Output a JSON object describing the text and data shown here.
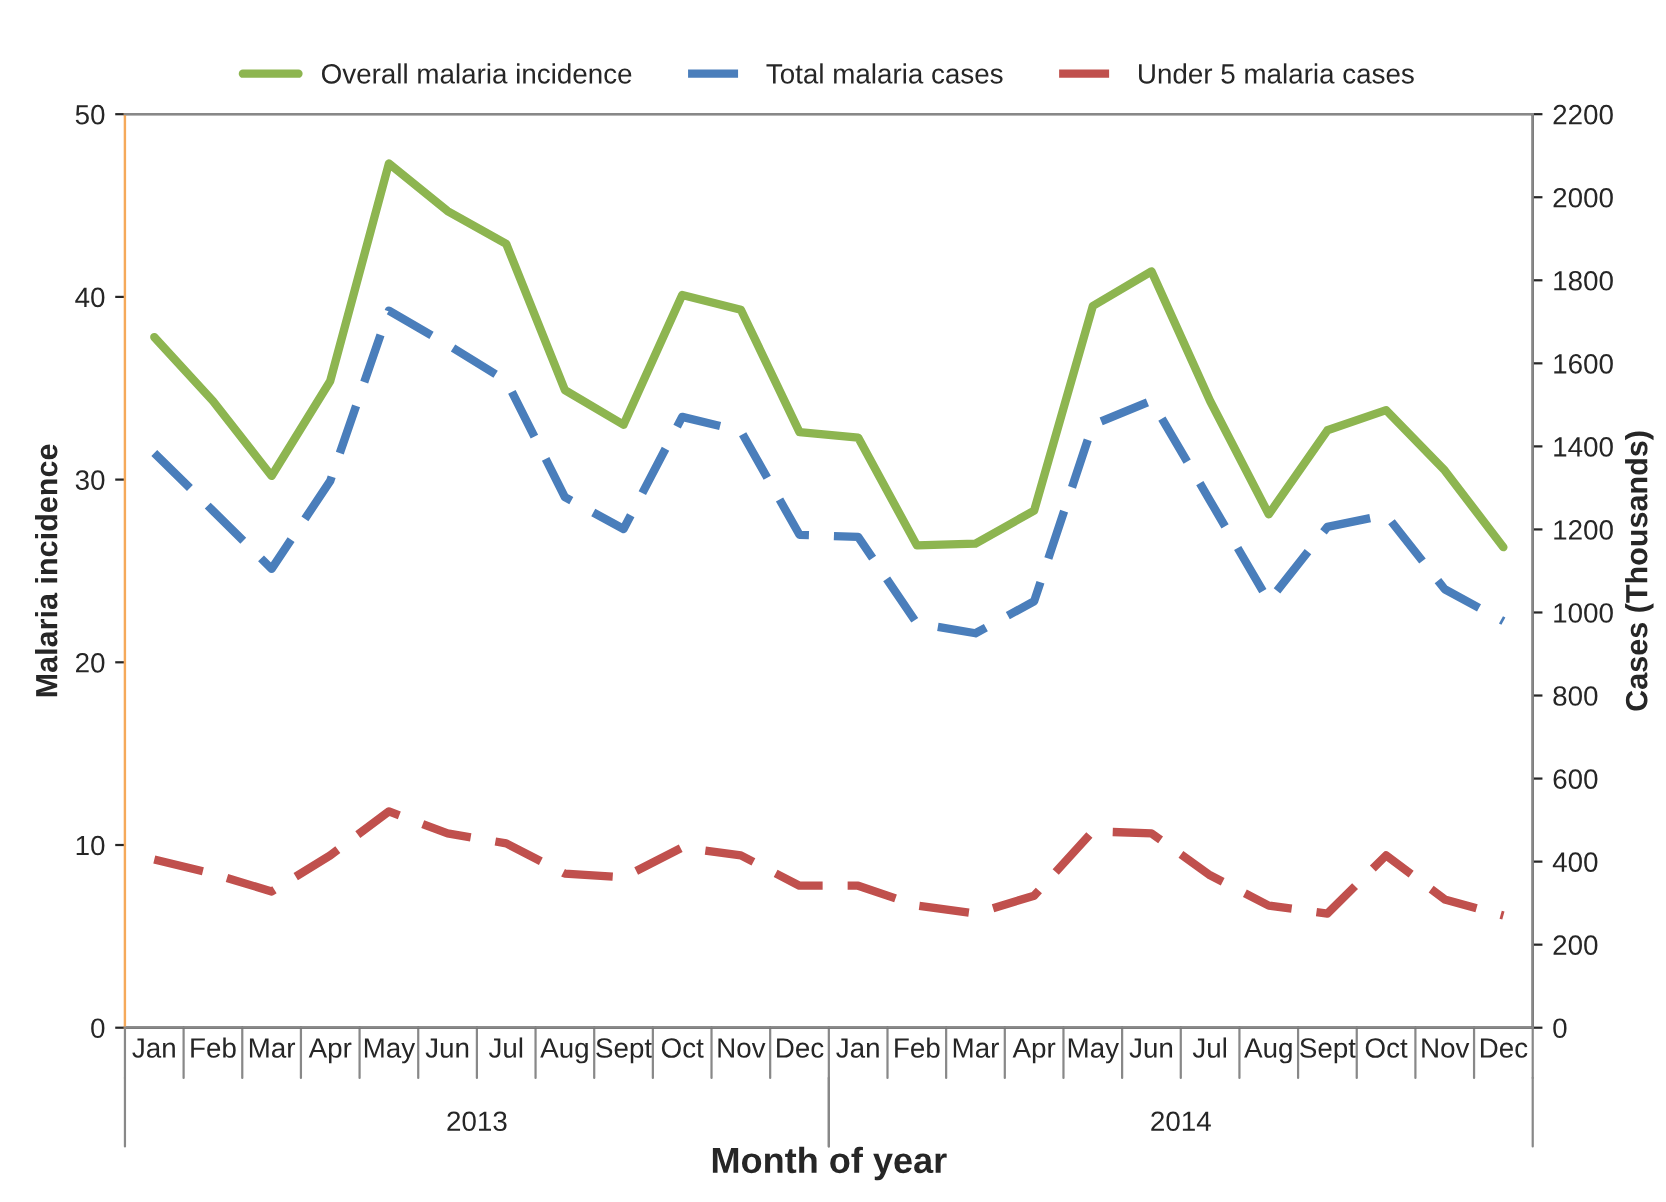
{
  "chart_data": {
    "type": "line",
    "categories": [
      "Jan",
      "Feb",
      "Mar",
      "Apr",
      "May",
      "Jun",
      "Jul",
      "Aug",
      "Sept",
      "Oct",
      "Nov",
      "Dec",
      "Jan",
      "Feb",
      "Mar",
      "Apr",
      "May",
      "Jun",
      "Jul",
      "Aug",
      "Sept",
      "Oct",
      "Nov",
      "Dec"
    ],
    "series": [
      {
        "name": "Overall malaria incidence",
        "color": "#8db550",
        "line_style": "solid",
        "values": [
          37.8,
          34.3,
          30.2,
          35.4,
          47.3,
          44.7,
          42.9,
          34.9,
          33.0,
          40.1,
          39.3,
          32.6,
          32.3,
          26.4,
          26.5,
          28.3,
          39.5,
          41.4,
          34.3,
          28.1,
          32.7,
          33.8,
          30.5,
          26.3
        ]
      },
      {
        "name": "Total malaria cases",
        "color": "#4a7ebb",
        "line_style": "dashed",
        "axis": "y2",
        "values": [
          1384,
          1245,
          1105,
          1317,
          1727,
          1645,
          1558,
          1278,
          1201,
          1471,
          1437,
          1187,
          1182,
          974,
          950,
          1027,
          1452,
          1510,
          1269,
          1027,
          1206,
          1235,
          1056,
          979
        ]
      },
      {
        "name": "Under 5 malaria cases",
        "color": "#c0504d",
        "line_style": "dashed",
        "axis": "y2",
        "values": [
          405,
          371,
          328,
          415,
          521,
          468,
          444,
          371,
          362,
          434,
          415,
          342,
          342,
          294,
          275,
          318,
          473,
          468,
          367,
          294,
          275,
          415,
          309,
          270
        ]
      }
    ],
    "xlabel": "Month of year",
    "ylabel": "Malaria incidence",
    "y2label": "Cases (Thousands)",
    "ylim": [
      0,
      50
    ],
    "yticks": [
      0,
      10,
      20,
      30,
      40,
      50
    ],
    "y2lim": [
      0,
      2200
    ],
    "y2ticks": [
      0,
      200,
      400,
      600,
      800,
      1000,
      1200,
      1400,
      1600,
      1800,
      2000,
      2200
    ],
    "annotations": [
      "2013",
      "2014"
    ],
    "legend": "top",
    "grid": false
  }
}
